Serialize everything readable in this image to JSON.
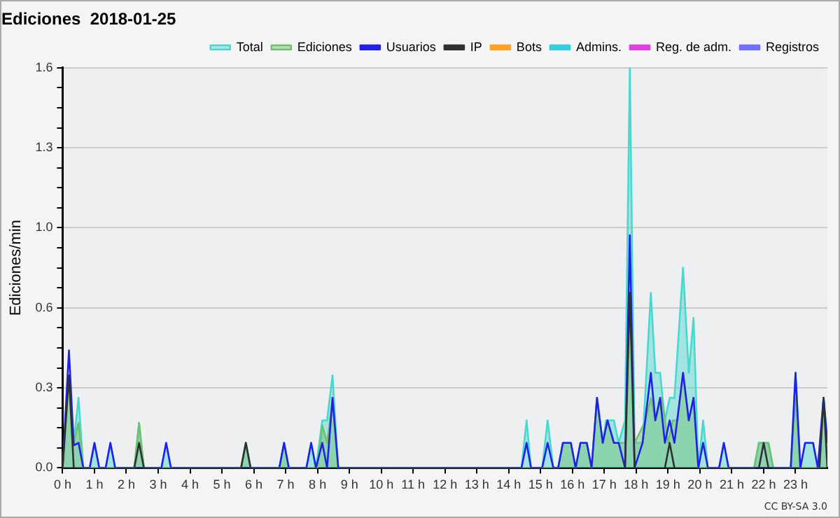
{
  "chart_data": {
    "type": "line",
    "title": "Ediciones  2018-01-25",
    "ylabel": "Ediciones/min",
    "annotations": [
      "CC BY-SA 3.0"
    ],
    "xlim": [
      0,
      24
    ],
    "xticks": [
      {
        "value": 0,
        "label": "0 h"
      },
      {
        "value": 1,
        "label": "1 h"
      },
      {
        "value": 2,
        "label": "2 h"
      },
      {
        "value": 3,
        "label": "3 h"
      },
      {
        "value": 4,
        "label": "4 h"
      },
      {
        "value": 5,
        "label": "5 h"
      },
      {
        "value": 6,
        "label": "6 h"
      },
      {
        "value": 7,
        "label": "7 h"
      },
      {
        "value": 8,
        "label": "8 h"
      },
      {
        "value": 9,
        "label": "9 h"
      },
      {
        "value": 10,
        "label": "10 h"
      },
      {
        "value": 11,
        "label": "11 h"
      },
      {
        "value": 12,
        "label": "12 h"
      },
      {
        "value": 13,
        "label": "13 h"
      },
      {
        "value": 14,
        "label": "14 h"
      },
      {
        "value": 15,
        "label": "15 h"
      },
      {
        "value": 16,
        "label": "16 h"
      },
      {
        "value": 17,
        "label": "17 h"
      },
      {
        "value": 18,
        "label": "18 h"
      },
      {
        "value": 19,
        "label": "19 h"
      },
      {
        "value": 20,
        "label": "20 h"
      },
      {
        "value": 21,
        "label": "21 h"
      },
      {
        "value": 22,
        "label": "22 h"
      },
      {
        "value": 23,
        "label": "23 h"
      }
    ],
    "ylim": [
      0,
      1.6
    ],
    "yticks": [
      {
        "value": 0,
        "label": "0.0"
      },
      {
        "value": 0.08,
        "label": null
      },
      {
        "value": 0.16,
        "label": null
      },
      {
        "value": 0.24,
        "label": null
      },
      {
        "value": 0.32,
        "label": "0.3"
      },
      {
        "value": 0.4,
        "label": null
      },
      {
        "value": 0.48,
        "label": null
      },
      {
        "value": 0.56,
        "label": null
      },
      {
        "value": 0.64,
        "label": "0.6"
      },
      {
        "value": 0.72,
        "label": null
      },
      {
        "value": 0.8,
        "label": null
      },
      {
        "value": 0.88,
        "label": null
      },
      {
        "value": 0.96,
        "label": "1.0"
      },
      {
        "value": 1.04,
        "label": null
      },
      {
        "value": 1.12,
        "label": null
      },
      {
        "value": 1.2,
        "label": null
      },
      {
        "value": 1.28,
        "label": "1.3"
      },
      {
        "value": 1.36,
        "label": null
      },
      {
        "value": 1.44,
        "label": null
      },
      {
        "value": 1.52,
        "label": null
      },
      {
        "value": 1.6,
        "label": "1.6"
      }
    ],
    "grid": "y",
    "legend": "top right",
    "marker": "none",
    "line_style": "solid",
    "series": [
      {
        "name": "Total",
        "type": "area",
        "color": "#48d8d0",
        "x": [
          0,
          0.2,
          0.35,
          0.5,
          0.65,
          0.85,
          1.0,
          1.15,
          1.35,
          1.5,
          1.65,
          2.25,
          2.4,
          2.55,
          3.1,
          3.25,
          3.4,
          5.6,
          5.75,
          5.9,
          6.8,
          6.95,
          7.1,
          7.65,
          7.8,
          7.95,
          8.15,
          8.3,
          8.47,
          8.65,
          14.4,
          14.56,
          14.7,
          15.05,
          15.22,
          15.4,
          15.55,
          15.7,
          15.95,
          16.1,
          16.25,
          16.45,
          16.6,
          16.77,
          16.95,
          17.05,
          17.3,
          17.45,
          17.65,
          17.8,
          17.95,
          18.2,
          18.46,
          18.6,
          18.75,
          18.9,
          19.05,
          19.2,
          19.47,
          19.65,
          19.8,
          19.95,
          20.1,
          20.25,
          20.6,
          20.75,
          20.9,
          21.7,
          21.85,
          22.15,
          22.3,
          22.85,
          23.0,
          23.15,
          23.3,
          23.55,
          23.7,
          23.88,
          24
        ],
        "values": [
          0,
          0.37,
          0.1,
          0.28,
          0,
          0,
          0.1,
          0,
          0,
          0.1,
          0,
          0,
          0.18,
          0,
          0,
          0.1,
          0,
          0,
          0.1,
          0,
          0,
          0.1,
          0,
          0,
          0.1,
          0,
          0.19,
          0.19,
          0.37,
          0,
          0,
          0.19,
          0,
          0,
          0.19,
          0,
          0,
          0.1,
          0.1,
          0,
          0.1,
          0.1,
          0,
          0.28,
          0.1,
          0.19,
          0.19,
          0.1,
          0.19,
          1.6,
          0.1,
          0.1,
          0.7,
          0.38,
          0.38,
          0.19,
          0.28,
          0.28,
          0.8,
          0.38,
          0.6,
          0,
          0.19,
          0,
          0,
          0.1,
          0,
          0,
          0.1,
          0.1,
          0,
          0,
          0.38,
          0,
          0.1,
          0.1,
          0,
          0.28,
          0.1
        ]
      },
      {
        "name": "Ediciones",
        "type": "area",
        "color": "#70c070",
        "x": [
          0,
          0.2,
          0.35,
          0.5,
          0.65,
          2.25,
          2.4,
          2.55,
          5.6,
          5.75,
          5.9,
          6.8,
          6.95,
          7.1,
          8.0,
          8.15,
          8.3,
          8.47,
          8.65,
          15.55,
          15.7,
          15.95,
          16.1,
          16.25,
          16.45,
          16.6,
          16.77,
          16.95,
          17.1,
          17.3,
          17.45,
          17.65,
          17.8,
          17.95,
          18.3,
          18.46,
          18.6,
          18.8,
          19.0,
          19.15,
          19.3,
          19.47,
          19.65,
          19.8,
          19.95,
          21.7,
          21.85,
          22.15,
          22.3,
          22.85,
          23.0,
          23.15,
          23.75,
          23.88,
          24
        ],
        "values": [
          0,
          0.37,
          0.1,
          0.18,
          0,
          0,
          0.18,
          0,
          0,
          0.1,
          0,
          0,
          0.1,
          0,
          0,
          0.17,
          0.1,
          0.27,
          0,
          0,
          0.1,
          0.1,
          0,
          0.1,
          0.1,
          0,
          0.28,
          0.1,
          0.19,
          0.1,
          0.1,
          0.1,
          0.7,
          0.1,
          0.19,
          0.28,
          0.19,
          0.28,
          0.1,
          0.19,
          0.19,
          0.38,
          0.19,
          0.28,
          0,
          0,
          0.1,
          0.1,
          0,
          0,
          0.28,
          0,
          0,
          0.28,
          0.1
        ]
      },
      {
        "name": "Usuarios",
        "color": "#2020e8",
        "x": [
          0,
          0.2,
          0.35,
          0.5,
          0.65,
          0.85,
          1.0,
          1.15,
          1.35,
          1.5,
          1.65,
          3.1,
          3.25,
          3.4,
          6.8,
          6.95,
          7.1,
          7.65,
          7.8,
          7.95,
          8.15,
          8.3,
          8.47,
          8.65,
          14.4,
          14.56,
          14.7,
          15.05,
          15.22,
          15.4,
          15.55,
          15.7,
          15.95,
          16.1,
          16.25,
          16.45,
          16.6,
          16.77,
          16.95,
          17.1,
          17.3,
          17.45,
          17.65,
          17.8,
          17.95,
          18.2,
          18.46,
          18.6,
          18.75,
          18.9,
          19.05,
          19.2,
          19.47,
          19.65,
          19.8,
          19.95,
          20.1,
          20.25,
          20.6,
          20.75,
          20.9,
          22.85,
          23.0,
          23.15,
          23.3,
          23.55,
          23.7,
          23.88,
          24
        ],
        "values": [
          0,
          0.47,
          0.09,
          0.1,
          0,
          0,
          0.1,
          0,
          0,
          0.1,
          0,
          0,
          0.1,
          0,
          0,
          0.1,
          0,
          0,
          0.1,
          0,
          0.1,
          0,
          0.28,
          0,
          0,
          0.1,
          0,
          0,
          0.1,
          0,
          0,
          0.1,
          0.1,
          0,
          0.1,
          0.1,
          0,
          0.28,
          0.1,
          0.19,
          0.1,
          0.1,
          0,
          0.93,
          0,
          0.1,
          0.38,
          0.19,
          0.28,
          0.1,
          0.19,
          0.1,
          0.38,
          0.19,
          0.28,
          0,
          0.1,
          0,
          0,
          0.1,
          0,
          0,
          0.38,
          0,
          0.1,
          0.1,
          0,
          0.28,
          0.1
        ]
      },
      {
        "name": "IP",
        "color": "#303030",
        "x": [
          0,
          0.2,
          0.35,
          1,
          2.25,
          2.4,
          2.55,
          4,
          5.6,
          5.75,
          5.9,
          10,
          17.65,
          17.8,
          17.95,
          18.5,
          18.9,
          19.05,
          19.2,
          20,
          21.85,
          22.0,
          22.15,
          23,
          23.75,
          23.88,
          24
        ],
        "values": [
          0,
          0.37,
          0,
          null,
          0,
          0.1,
          0,
          null,
          0,
          0.1,
          0,
          null,
          0,
          0.7,
          0,
          null,
          0,
          0.1,
          0,
          null,
          0,
          0.1,
          0,
          null,
          0,
          0.28,
          0
        ]
      },
      {
        "name": "Bots",
        "color": "#ffa020"
      },
      {
        "name": "Admins.",
        "color": "#30d0e0"
      },
      {
        "name": "Reg. de adm.",
        "color": "#e040e0"
      },
      {
        "name": "Registros",
        "color": "#7070ff"
      }
    ]
  }
}
